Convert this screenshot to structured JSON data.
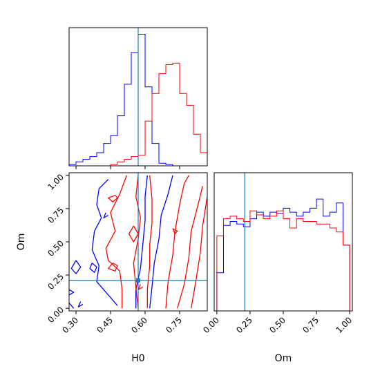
{
  "chart_data": [
    {
      "type": "histogram",
      "panel": "H0 marginal",
      "xlim": [
        0.27,
        0.87
      ],
      "marker_x": 0.57,
      "series": [
        {
          "color": "#0000ff",
          "bins_x": [
            0.27,
            0.3,
            0.33,
            0.36,
            0.39,
            0.42,
            0.45,
            0.48,
            0.51,
            0.54,
            0.57,
            0.6,
            0.63,
            0.66,
            0.69,
            0.72,
            0.75,
            0.78,
            0.81,
            0.84,
            0.87
          ],
          "values": [
            0.01,
            0.03,
            0.05,
            0.07,
            0.1,
            0.17,
            0.23,
            0.38,
            0.62,
            0.86,
            1.0,
            0.6,
            0.17,
            0.02,
            0.01,
            0.0,
            0.0,
            0.0,
            0.0,
            0.0
          ]
        },
        {
          "color": "#ff0000",
          "bins_x": [
            0.27,
            0.3,
            0.33,
            0.36,
            0.39,
            0.42,
            0.45,
            0.48,
            0.51,
            0.54,
            0.57,
            0.6,
            0.63,
            0.66,
            0.69,
            0.72,
            0.75,
            0.78,
            0.81,
            0.84,
            0.87
          ],
          "values": [
            0.0,
            0.0,
            0.0,
            0.0,
            0.0,
            0.0,
            0.01,
            0.03,
            0.05,
            0.07,
            0.08,
            0.34,
            0.55,
            0.7,
            0.77,
            0.78,
            0.55,
            0.46,
            0.24,
            0.1,
            0.04
          ]
        }
      ]
    },
    {
      "type": "contour",
      "panel": "H0 vs Om",
      "xlabel": "H0",
      "ylabel": "Om",
      "xlim": [
        0.27,
        0.87
      ],
      "ylim": [
        -0.02,
        1.02
      ],
      "xticks": [
        "0.30",
        "0.45",
        "0.60",
        "0.75"
      ],
      "xtick_values": [
        0.3,
        0.45,
        0.6,
        0.75
      ],
      "yticks": [
        "0.00",
        "0.25",
        "0.50",
        "0.75",
        "1.00"
      ],
      "ytick_values": [
        0.0,
        0.25,
        0.5,
        0.75,
        1.0
      ],
      "marker": {
        "x": 0.57,
        "y": 0.21
      },
      "series": [
        {
          "color": "#0000ff",
          "contours": [
            [
              [
                0.44,
                0.97
              ],
              [
                0.4,
                0.9
              ],
              [
                0.39,
                0.78
              ],
              [
                0.41,
                0.68
              ],
              [
                0.38,
                0.58
              ],
              [
                0.37,
                0.44
              ],
              [
                0.4,
                0.32
              ],
              [
                0.39,
                0.2
              ],
              [
                0.44,
                0.1
              ],
              [
                0.48,
                0.02
              ]
            ],
            [
              [
                0.56,
                0.0
              ],
              [
                0.56,
                0.14
              ],
              [
                0.58,
                0.3
              ],
              [
                0.59,
                0.48
              ],
              [
                0.6,
                0.66
              ],
              [
                0.6,
                0.84
              ],
              [
                0.61,
                1.0
              ]
            ],
            [
              [
                0.62,
                0.0
              ],
              [
                0.63,
                0.16
              ],
              [
                0.64,
                0.34
              ],
              [
                0.66,
                0.52
              ],
              [
                0.67,
                0.7
              ],
              [
                0.7,
                0.86
              ],
              [
                0.72,
                1.0
              ]
            ],
            [
              [
                0.27,
                0.04
              ],
              [
                0.29,
                0.0
              ]
            ],
            [
              [
                0.27,
                0.1
              ],
              [
                0.29,
                0.12
              ],
              [
                0.27,
                0.14
              ]
            ],
            [
              [
                0.3,
                0.36
              ],
              [
                0.28,
                0.3
              ],
              [
                0.3,
                0.26
              ],
              [
                0.32,
                0.31
              ],
              [
                0.3,
                0.36
              ]
            ],
            [
              [
                0.37,
                0.34
              ],
              [
                0.36,
                0.3
              ],
              [
                0.38,
                0.27
              ],
              [
                0.39,
                0.31
              ],
              [
                0.37,
                0.34
              ]
            ],
            [
              [
                0.32,
                0.05
              ],
              [
                0.31,
                0.01
              ],
              [
                0.33,
                0.03
              ]
            ],
            [
              [
                0.43,
                0.72
              ],
              [
                0.42,
                0.68
              ],
              [
                0.44,
                0.7
              ]
            ]
          ]
        },
        {
          "color": "#ff0000",
          "contours": [
            [
              [
                0.52,
                1.0
              ],
              [
                0.49,
                0.86
              ],
              [
                0.45,
                0.72
              ],
              [
                0.47,
                0.58
              ],
              [
                0.43,
                0.45
              ],
              [
                0.44,
                0.36
              ],
              [
                0.49,
                0.28
              ],
              [
                0.5,
                0.14
              ],
              [
                0.5,
                0.0
              ]
            ],
            [
              [
                0.57,
                0.0
              ],
              [
                0.56,
                0.16
              ],
              [
                0.55,
                0.34
              ],
              [
                0.57,
                0.52
              ],
              [
                0.58,
                0.68
              ],
              [
                0.56,
                0.84
              ],
              [
                0.57,
                1.0
              ]
            ],
            [
              [
                0.62,
                1.0
              ],
              [
                0.63,
                0.82
              ],
              [
                0.63,
                0.64
              ],
              [
                0.62,
                0.48
              ],
              [
                0.62,
                0.32
              ],
              [
                0.61,
                0.14
              ],
              [
                0.61,
                0.0
              ]
            ],
            [
              [
                0.69,
                0.0
              ],
              [
                0.7,
                0.2
              ],
              [
                0.72,
                0.4
              ],
              [
                0.73,
                0.58
              ],
              [
                0.75,
                0.78
              ],
              [
                0.77,
                0.94
              ],
              [
                0.79,
                1.0
              ]
            ],
            [
              [
                0.74,
                0.0
              ],
              [
                0.77,
                0.18
              ],
              [
                0.79,
                0.38
              ],
              [
                0.8,
                0.58
              ],
              [
                0.83,
                0.78
              ],
              [
                0.85,
                0.92
              ]
            ],
            [
              [
                0.8,
                0.0
              ],
              [
                0.82,
                0.2
              ],
              [
                0.84,
                0.42
              ],
              [
                0.85,
                0.62
              ],
              [
                0.87,
                0.84
              ]
            ],
            [
              [
                0.47,
                0.85
              ],
              [
                0.44,
                0.83
              ],
              [
                0.46,
                0.8
              ],
              [
                0.48,
                0.83
              ],
              [
                0.47,
                0.85
              ]
            ],
            [
              [
                0.55,
                0.62
              ],
              [
                0.53,
                0.56
              ],
              [
                0.55,
                0.5
              ],
              [
                0.57,
                0.56
              ],
              [
                0.55,
                0.62
              ]
            ],
            [
              [
                0.72,
                0.6
              ],
              [
                0.73,
                0.56
              ],
              [
                0.74,
                0.58
              ],
              [
                0.72,
                0.6
              ]
            ],
            [
              [
                0.46,
                0.34
              ],
              [
                0.44,
                0.3
              ],
              [
                0.47,
                0.28
              ],
              [
                0.48,
                0.32
              ],
              [
                0.46,
                0.34
              ]
            ],
            [
              [
                0.58,
                0.18
              ],
              [
                0.57,
                0.14
              ],
              [
                0.59,
                0.16
              ]
            ]
          ]
        }
      ]
    },
    {
      "type": "histogram",
      "panel": "Om marginal",
      "xlabel": "Om",
      "xlim": [
        -0.02,
        1.02
      ],
      "xticks": [
        "0.00",
        "0.25",
        "0.50",
        "0.75",
        "1.00"
      ],
      "xtick_values": [
        0.0,
        0.25,
        0.5,
        0.75,
        1.0
      ],
      "marker_x": 0.21,
      "series": [
        {
          "color": "#0000ff",
          "bins_x": [
            0.0,
            0.05,
            0.1,
            0.15,
            0.2,
            0.25,
            0.3,
            0.35,
            0.4,
            0.45,
            0.5,
            0.55,
            0.6,
            0.65,
            0.7,
            0.75,
            0.8,
            0.85,
            0.9,
            0.95,
            1.0
          ],
          "values": [
            0.29,
            0.65,
            0.68,
            0.66,
            0.64,
            0.7,
            0.75,
            0.72,
            0.75,
            0.74,
            0.78,
            0.75,
            0.72,
            0.75,
            0.78,
            0.85,
            0.72,
            0.75,
            0.82,
            0.5
          ]
        },
        {
          "color": "#ff0000",
          "bins_x": [
            0.0,
            0.05,
            0.1,
            0.15,
            0.2,
            0.25,
            0.3,
            0.35,
            0.4,
            0.45,
            0.5,
            0.55,
            0.6,
            0.65,
            0.7,
            0.75,
            0.8,
            0.85,
            0.9,
            0.95,
            1.0
          ],
          "values": [
            0.57,
            0.7,
            0.72,
            0.7,
            0.68,
            0.76,
            0.73,
            0.7,
            0.72,
            0.76,
            0.7,
            0.63,
            0.7,
            0.68,
            0.68,
            0.66,
            0.66,
            0.63,
            0.6,
            0.5
          ]
        }
      ]
    }
  ]
}
